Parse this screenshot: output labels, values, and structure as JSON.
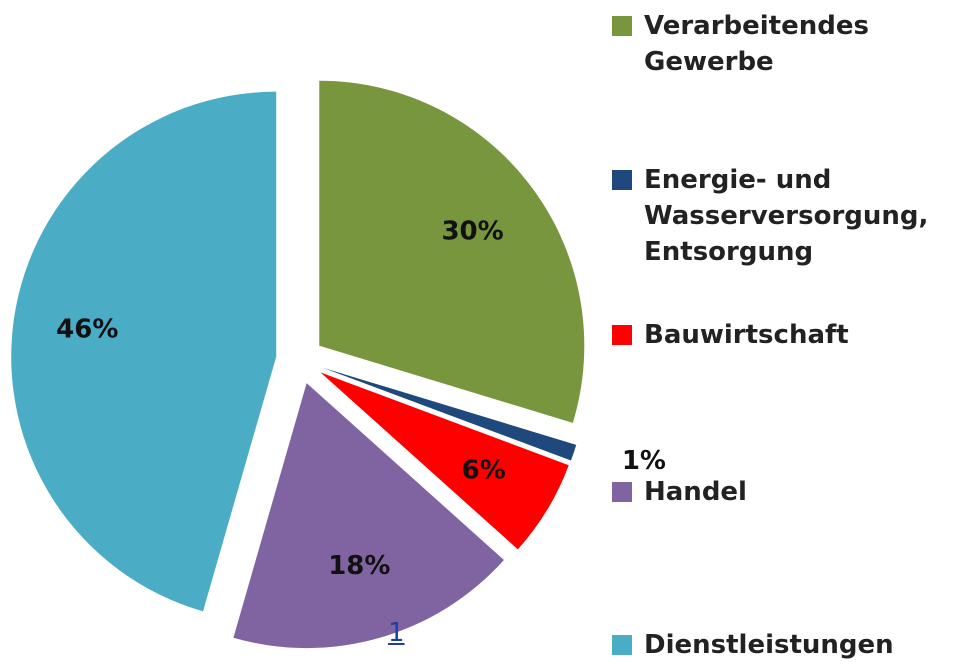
{
  "chart_data": {
    "type": "pie",
    "categories": [
      "Verarbeitendes Gewerbe",
      "Energie- und Wasserversorgung, Entsorgung",
      "Bauwirtschaft",
      "Handel",
      "Dienstleistungen"
    ],
    "values": [
      30,
      1,
      6,
      18,
      46
    ],
    "value_labels": [
      "30%",
      "1%",
      "6%",
      "18%",
      "46%"
    ],
    "colors": [
      "#77963d",
      "#1f497d",
      "#ff0000",
      "#8064a2",
      "#4bacc6"
    ],
    "legend": "right"
  },
  "link": "1"
}
